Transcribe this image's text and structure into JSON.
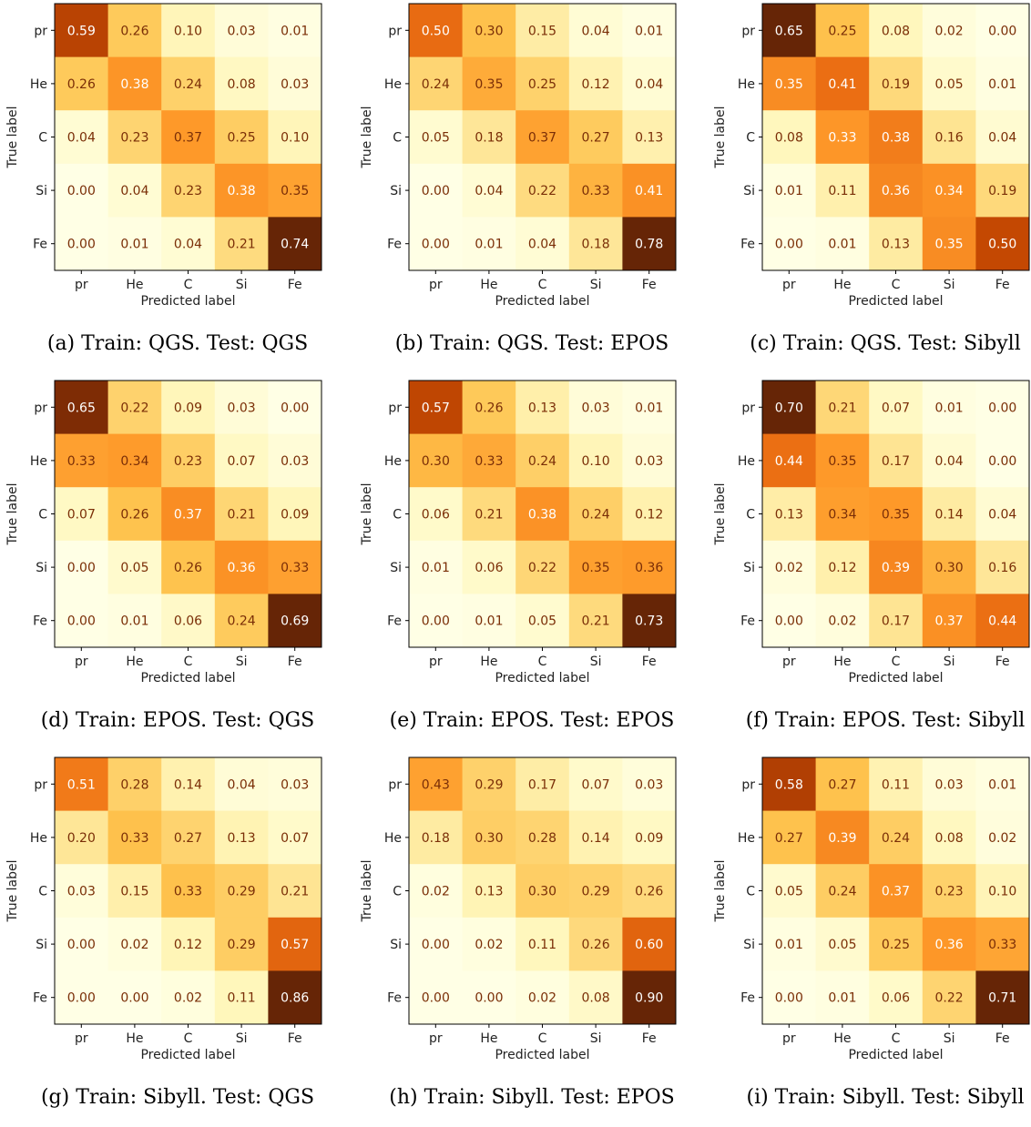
{
  "chart_data": [
    {
      "type": "heatmap",
      "caption": "(a) Train: QGS. Test: QGS",
      "xlabel": "Predicted label",
      "ylabel": "True label",
      "x_categories": [
        "pr",
        "He",
        "C",
        "Si",
        "Fe"
      ],
      "y_categories": [
        "pr",
        "He",
        "C",
        "Si",
        "Fe"
      ],
      "values": [
        [
          0.59,
          0.26,
          0.1,
          0.03,
          0.01
        ],
        [
          0.26,
          0.38,
          0.24,
          0.08,
          0.03
        ],
        [
          0.04,
          0.23,
          0.37,
          0.25,
          0.1
        ],
        [
          0.0,
          0.04,
          0.23,
          0.38,
          0.35
        ],
        [
          0.0,
          0.01,
          0.04,
          0.21,
          0.74
        ]
      ],
      "colormap": "YlOrBr"
    },
    {
      "type": "heatmap",
      "caption": "(b) Train: QGS. Test: EPOS",
      "xlabel": "Predicted label",
      "ylabel": "True label",
      "x_categories": [
        "pr",
        "He",
        "C",
        "Si",
        "Fe"
      ],
      "y_categories": [
        "pr",
        "He",
        "C",
        "Si",
        "Fe"
      ],
      "values": [
        [
          0.5,
          0.3,
          0.15,
          0.04,
          0.01
        ],
        [
          0.24,
          0.35,
          0.25,
          0.12,
          0.04
        ],
        [
          0.05,
          0.18,
          0.37,
          0.27,
          0.13
        ],
        [
          0.0,
          0.04,
          0.22,
          0.33,
          0.41
        ],
        [
          0.0,
          0.01,
          0.04,
          0.18,
          0.78
        ]
      ],
      "colormap": "YlOrBr"
    },
    {
      "type": "heatmap",
      "caption": "(c) Train: QGS. Test: Sibyll",
      "xlabel": "Predicted label",
      "ylabel": "True label",
      "x_categories": [
        "pr",
        "He",
        "C",
        "Si",
        "Fe"
      ],
      "y_categories": [
        "pr",
        "He",
        "C",
        "Si",
        "Fe"
      ],
      "values": [
        [
          0.65,
          0.25,
          0.08,
          0.02,
          0.0
        ],
        [
          0.35,
          0.41,
          0.19,
          0.05,
          0.01
        ],
        [
          0.08,
          0.33,
          0.38,
          0.16,
          0.04
        ],
        [
          0.01,
          0.11,
          0.36,
          0.34,
          0.19
        ],
        [
          0.0,
          0.01,
          0.13,
          0.35,
          0.5
        ]
      ],
      "colormap": "YlOrBr"
    },
    {
      "type": "heatmap",
      "caption": "(d) Train: EPOS. Test: QGS",
      "xlabel": "Predicted label",
      "ylabel": "True label",
      "x_categories": [
        "pr",
        "He",
        "C",
        "Si",
        "Fe"
      ],
      "y_categories": [
        "pr",
        "He",
        "C",
        "Si",
        "Fe"
      ],
      "values": [
        [
          0.65,
          0.22,
          0.09,
          0.03,
          0.0
        ],
        [
          0.33,
          0.34,
          0.23,
          0.07,
          0.03
        ],
        [
          0.07,
          0.26,
          0.37,
          0.21,
          0.09
        ],
        [
          0.0,
          0.05,
          0.26,
          0.36,
          0.33
        ],
        [
          0.0,
          0.01,
          0.06,
          0.24,
          0.69
        ]
      ],
      "colormap": "YlOrBr"
    },
    {
      "type": "heatmap",
      "caption": "(e) Train: EPOS. Test: EPOS",
      "xlabel": "Predicted label",
      "ylabel": "True label",
      "x_categories": [
        "pr",
        "He",
        "C",
        "Si",
        "Fe"
      ],
      "y_categories": [
        "pr",
        "He",
        "C",
        "Si",
        "Fe"
      ],
      "values": [
        [
          0.57,
          0.26,
          0.13,
          0.03,
          0.01
        ],
        [
          0.3,
          0.33,
          0.24,
          0.1,
          0.03
        ],
        [
          0.06,
          0.21,
          0.38,
          0.24,
          0.12
        ],
        [
          0.01,
          0.06,
          0.22,
          0.35,
          0.36
        ],
        [
          0.0,
          0.01,
          0.05,
          0.21,
          0.73
        ]
      ],
      "colormap": "YlOrBr"
    },
    {
      "type": "heatmap",
      "caption": "(f) Train: EPOS. Test: Sibyll",
      "xlabel": "Predicted label",
      "ylabel": "True label",
      "x_categories": [
        "pr",
        "He",
        "C",
        "Si",
        "Fe"
      ],
      "y_categories": [
        "pr",
        "He",
        "C",
        "Si",
        "Fe"
      ],
      "values": [
        [
          0.7,
          0.21,
          0.07,
          0.01,
          0.0
        ],
        [
          0.44,
          0.35,
          0.17,
          0.04,
          0.0
        ],
        [
          0.13,
          0.34,
          0.35,
          0.14,
          0.04
        ],
        [
          0.02,
          0.12,
          0.39,
          0.3,
          0.16
        ],
        [
          0.0,
          0.02,
          0.17,
          0.37,
          0.44
        ]
      ],
      "colormap": "YlOrBr"
    },
    {
      "type": "heatmap",
      "caption": "(g) Train: Sibyll. Test: QGS",
      "xlabel": "Predicted label",
      "ylabel": "True label",
      "x_categories": [
        "pr",
        "He",
        "C",
        "Si",
        "Fe"
      ],
      "y_categories": [
        "pr",
        "He",
        "C",
        "Si",
        "Fe"
      ],
      "values": [
        [
          0.51,
          0.28,
          0.14,
          0.04,
          0.03
        ],
        [
          0.2,
          0.33,
          0.27,
          0.13,
          0.07
        ],
        [
          0.03,
          0.15,
          0.33,
          0.29,
          0.21
        ],
        [
          0.0,
          0.02,
          0.12,
          0.29,
          0.57
        ],
        [
          0.0,
          0.0,
          0.02,
          0.11,
          0.86
        ]
      ],
      "colormap": "YlOrBr"
    },
    {
      "type": "heatmap",
      "caption": "(h) Train: Sibyll. Test: EPOS",
      "xlabel": "Predicted label",
      "ylabel": "True label",
      "x_categories": [
        "pr",
        "He",
        "C",
        "Si",
        "Fe"
      ],
      "y_categories": [
        "pr",
        "He",
        "C",
        "Si",
        "Fe"
      ],
      "values": [
        [
          0.43,
          0.29,
          0.17,
          0.07,
          0.03
        ],
        [
          0.18,
          0.3,
          0.28,
          0.14,
          0.09
        ],
        [
          0.02,
          0.13,
          0.3,
          0.29,
          0.26
        ],
        [
          0.0,
          0.02,
          0.11,
          0.26,
          0.6
        ],
        [
          0.0,
          0.0,
          0.02,
          0.08,
          0.9
        ]
      ],
      "colormap": "YlOrBr"
    },
    {
      "type": "heatmap",
      "caption": "(i) Train: Sibyll. Test: Sibyll",
      "xlabel": "Predicted label",
      "ylabel": "True label",
      "x_categories": [
        "pr",
        "He",
        "C",
        "Si",
        "Fe"
      ],
      "y_categories": [
        "pr",
        "He",
        "C",
        "Si",
        "Fe"
      ],
      "values": [
        [
          0.58,
          0.27,
          0.11,
          0.03,
          0.01
        ],
        [
          0.27,
          0.39,
          0.24,
          0.08,
          0.02
        ],
        [
          0.05,
          0.24,
          0.37,
          0.23,
          0.1
        ],
        [
          0.01,
          0.05,
          0.25,
          0.36,
          0.33
        ],
        [
          0.0,
          0.01,
          0.06,
          0.22,
          0.71
        ]
      ],
      "colormap": "YlOrBr"
    }
  ]
}
